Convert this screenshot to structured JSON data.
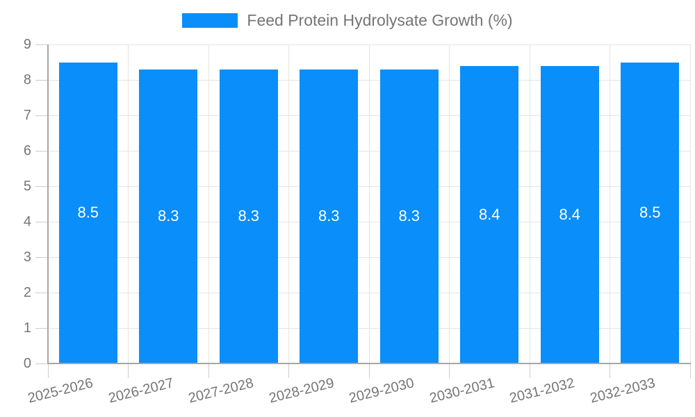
{
  "legend": {
    "label": "Feed Protein Hydrolysate Growth (%)"
  },
  "chart_data": {
    "type": "bar",
    "title": "Feed Protein Hydrolysate Growth (%)",
    "categories": [
      "2025-2026",
      "2026-2027",
      "2027-2028",
      "2028-2029",
      "2029-2030",
      "2030-2031",
      "2031-2032",
      "2032-2033"
    ],
    "values": [
      8.5,
      8.3,
      8.3,
      8.3,
      8.3,
      8.4,
      8.4,
      8.5
    ],
    "value_labels": [
      "8.5",
      "8.3",
      "8.3",
      "8.3",
      "8.3",
      "8.4",
      "8.4",
      "8.5"
    ],
    "xlabel": "",
    "ylabel": "",
    "ylim": [
      0,
      9
    ],
    "ytick_step": 1,
    "yticks": [
      0,
      1,
      2,
      3,
      4,
      5,
      6,
      7,
      8,
      9
    ],
    "grid": true,
    "legend_position": "top",
    "colors": {
      "bar": "#0a8ef9",
      "grid": "#e4e4e4",
      "tick": "#cccccc",
      "axis": "#a6a6a6",
      "tick_label": "#757575",
      "value_label": "#ffffff",
      "legend_label": "#757575"
    }
  }
}
